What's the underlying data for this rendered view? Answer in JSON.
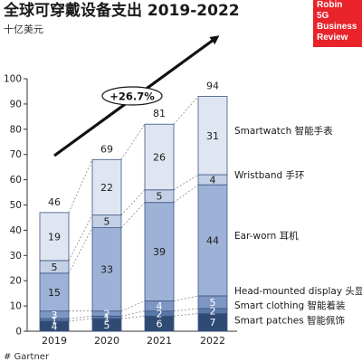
{
  "header": {
    "title": "全球可穿戴设备支出 2019-2022",
    "subtitle": "十亿美元"
  },
  "brand": {
    "lines": [
      "Robin",
      "5G",
      "Business",
      "Review"
    ],
    "color": "#e8232a"
  },
  "footer": {
    "source": "# Gartner"
  },
  "chart_data": {
    "type": "bar",
    "stacked": true,
    "categories": [
      "2019",
      "2020",
      "2021",
      "2022"
    ],
    "ylim": [
      0,
      100
    ],
    "yticks": [
      0,
      10,
      20,
      30,
      40,
      50,
      60,
      70,
      80,
      90,
      100
    ],
    "grid": false,
    "series": [
      {
        "name": "Smart patches 智能佩饰",
        "values": [
          4,
          5,
          6,
          7
        ],
        "labels": [
          "4",
          "5",
          "6",
          "7"
        ],
        "color": "#2f4a73",
        "label_color": "#ffffff"
      },
      {
        "name": "Smart clothing 智能着装",
        "values": [
          1,
          1,
          2,
          2
        ],
        "labels": [
          "1",
          "1",
          "2",
          "2"
        ],
        "color": "#5878a8",
        "label_color": "#ffffff"
      },
      {
        "name": "Head-mounted display 头显",
        "values": [
          3,
          2,
          4,
          5
        ],
        "labels": [
          "3",
          "2",
          "4",
          "5"
        ],
        "color": "#7d97c2",
        "label_color": "#ffffff"
      },
      {
        "name": "Ear-worn 耳机",
        "values": [
          15,
          33,
          39,
          44
        ],
        "labels": [
          "15",
          "33",
          "39",
          "44"
        ],
        "color": "#9db2d6",
        "label_color": "#1a1a1a"
      },
      {
        "name": "Wristband 手环",
        "values": [
          5,
          5,
          5,
          4
        ],
        "labels": [
          "5",
          "5",
          "5",
          "4"
        ],
        "color": "#c3d0e6",
        "label_color": "#1a1a1a"
      },
      {
        "name": "Smartwatch 智能手表",
        "values": [
          19,
          22,
          26,
          31
        ],
        "labels": [
          "19",
          "22",
          "26",
          "31"
        ],
        "color": "#e0e6f1",
        "label_color": "#1a1a1a"
      }
    ],
    "totals": [
      46,
      69,
      81,
      94
    ],
    "annotation": "+26.7%"
  }
}
